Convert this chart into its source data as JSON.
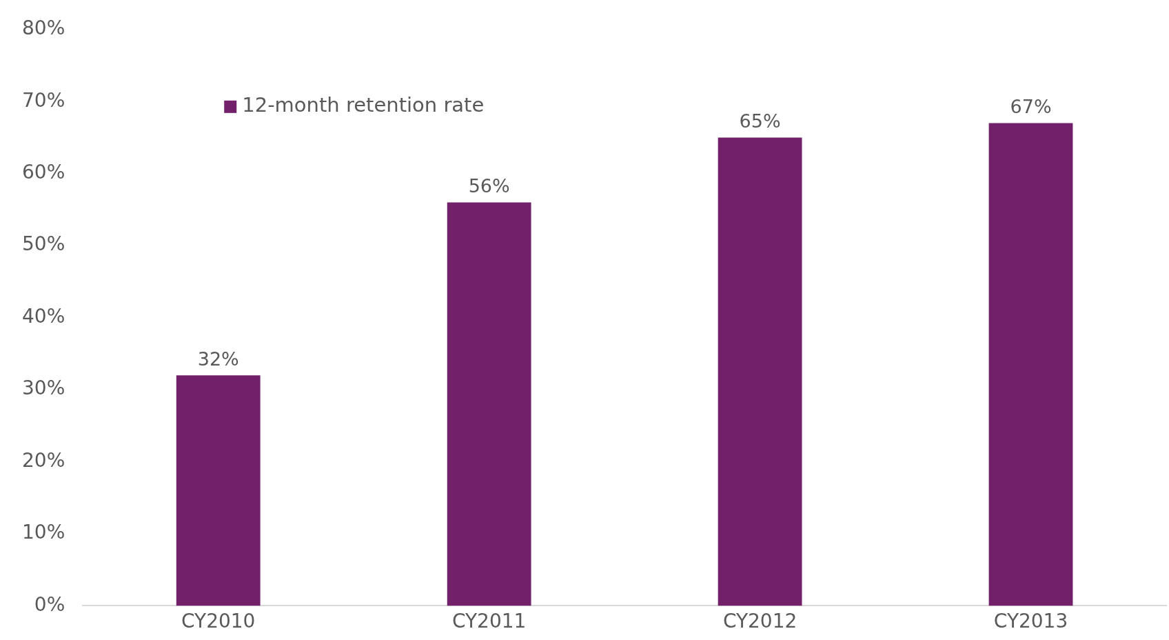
{
  "chart_data": {
    "type": "bar",
    "categories": [
      "CY2010",
      "CY2011",
      "CY2012",
      "CY2013"
    ],
    "series": [
      {
        "name": "12-month retention rate",
        "color": "#722069",
        "values": [
          32,
          56,
          65,
          67
        ]
      }
    ],
    "ylim": [
      0,
      80
    ],
    "yticks": [
      {
        "value": 0,
        "label": "0%"
      },
      {
        "value": 10,
        "label": "10%"
      },
      {
        "value": 20,
        "label": "20%"
      },
      {
        "value": 30,
        "label": "30%"
      },
      {
        "value": 40,
        "label": "40%"
      },
      {
        "value": 50,
        "label": "50%"
      },
      {
        "value": 60,
        "label": "60%"
      },
      {
        "value": 70,
        "label": "70%"
      },
      {
        "value": 80,
        "label": "80%"
      }
    ],
    "value_labels": [
      "32%",
      "56%",
      "65%",
      "67%"
    ],
    "grid": false,
    "legend": "top left"
  }
}
